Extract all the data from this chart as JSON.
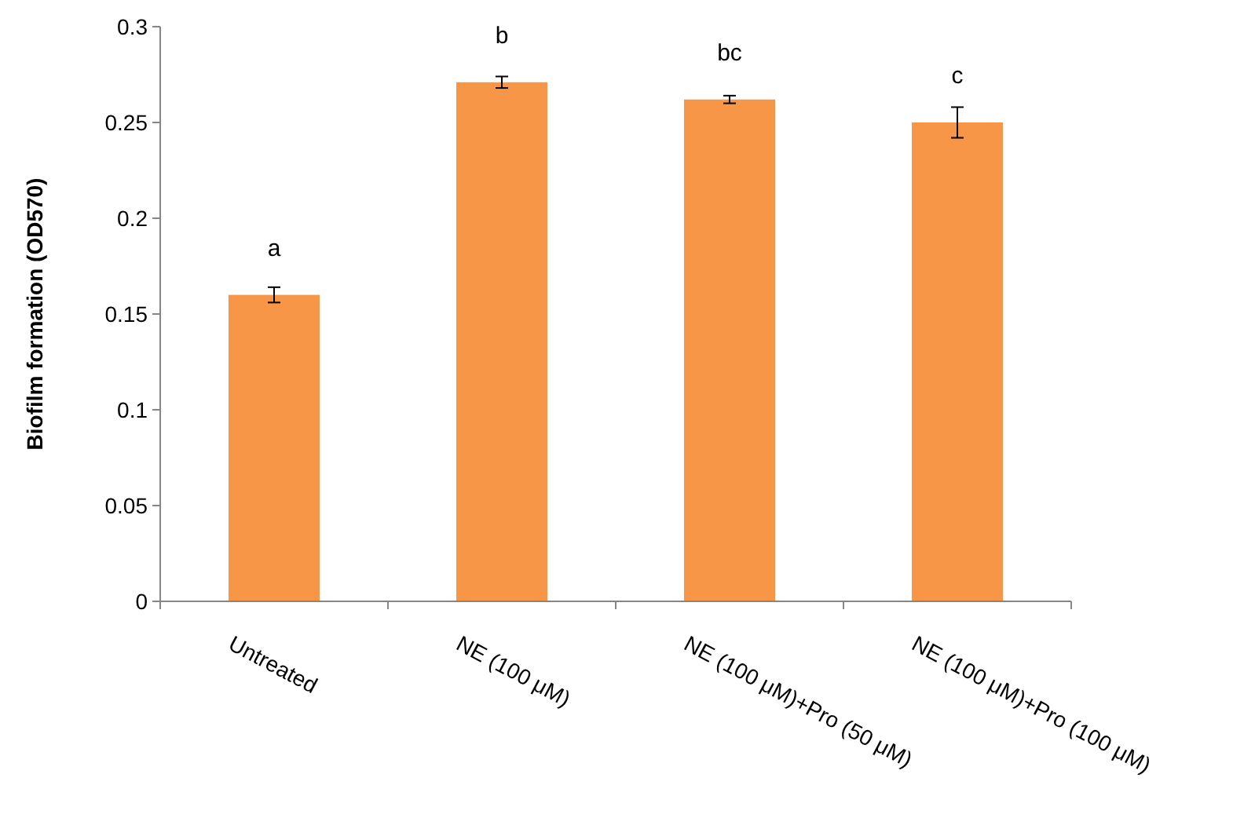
{
  "chart_data": {
    "type": "bar",
    "ylabel": "Biofilm formation (OD570)",
    "categories": [
      "Untreated",
      "NE (100 μM)",
      "NE (100 μM)+Pro (50 μM)",
      "NE (100 μM)+Pro (100 μM)"
    ],
    "values": [
      0.16,
      0.271,
      0.262,
      0.25
    ],
    "errors": [
      0.004,
      0.003,
      0.002,
      0.008
    ],
    "color": "#f79646",
    "ylim": [
      0,
      0.3
    ],
    "yticks": [
      {
        "value": 0,
        "label": "0"
      },
      0.05,
      0.1,
      0.15,
      0.2,
      0.25,
      0.3
    ],
    "grid": false,
    "annotations": [
      {
        "text": "a",
        "x": "Untreated",
        "y": 0.16
      },
      {
        "text": "b",
        "x": "NE (100 μM)",
        "y": 0.271
      },
      {
        "text": "bc",
        "x": "NE (100 μM)+Pro (50 μM)",
        "y": 0.262
      },
      {
        "text": "c",
        "x": "NE (100 μM)+Pro (100 μM)",
        "y": 0.25
      }
    ]
  }
}
